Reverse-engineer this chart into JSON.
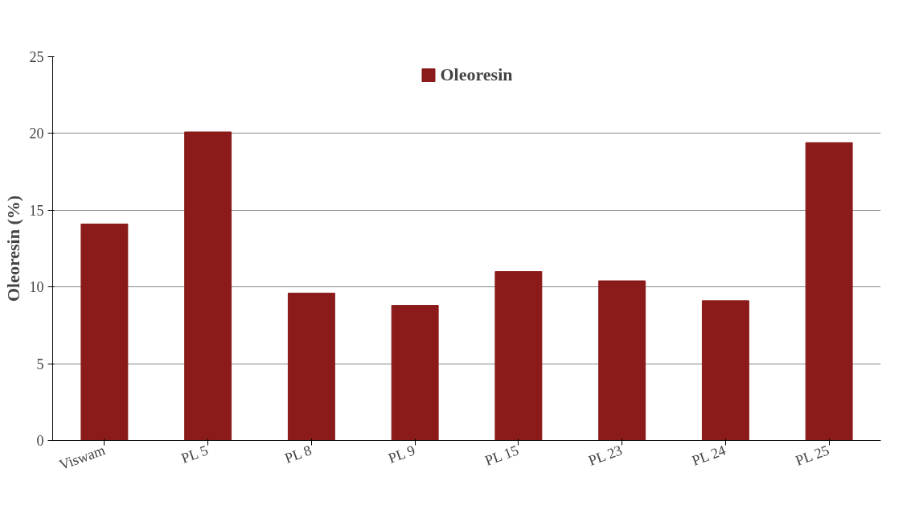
{
  "chart_data": {
    "type": "bar",
    "ylabel": "Oleoresin (%)",
    "categories": [
      "Viswam",
      "PL 5",
      "PL 8",
      "PL 9",
      "PL 15",
      "PL 23",
      "PL 24",
      "PL 25"
    ],
    "series": [
      {
        "name": "Oleoresin",
        "color": "#8b1a1a",
        "values": [
          14.1,
          20.1,
          9.6,
          8.8,
          11.0,
          10.4,
          9.1,
          19.4
        ]
      }
    ],
    "ylim": [
      0,
      25
    ],
    "yticks": [
      0,
      5,
      10,
      15,
      20,
      25
    ],
    "grid": "y",
    "legend": "top"
  }
}
